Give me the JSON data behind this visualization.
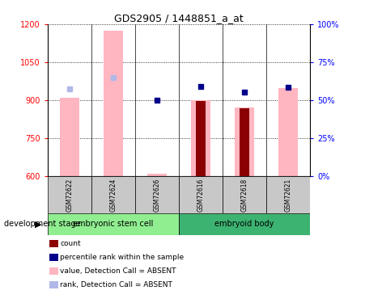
{
  "title": "GDS2905 / 1448851_a_at",
  "samples": [
    "GSM72622",
    "GSM72624",
    "GSM72626",
    "GSM72616",
    "GSM72618",
    "GSM72621"
  ],
  "ylim_left": [
    600,
    1200
  ],
  "ylim_right": [
    0,
    100
  ],
  "yticks_left": [
    600,
    750,
    900,
    1050,
    1200
  ],
  "yticks_right": [
    0,
    25,
    50,
    75,
    100
  ],
  "ytick_labels_right": [
    "0%",
    "25%",
    "50%",
    "75%",
    "100%"
  ],
  "groups": [
    {
      "name": "embryonic stem cell",
      "samples": [
        "GSM72622",
        "GSM72624",
        "GSM72626"
      ],
      "color": "#90EE90"
    },
    {
      "name": "embryoid body",
      "samples": [
        "GSM72616",
        "GSM72618",
        "GSM72621"
      ],
      "color": "#3CB371"
    }
  ],
  "absent_value_bars": {
    "GSM72622": 908,
    "GSM72624": 1175,
    "GSM72626": 607,
    "GSM72616": 898,
    "GSM72618": 870,
    "GSM72621": 948
  },
  "absent_rank_points": {
    "GSM72622": 945,
    "GSM72624": 990,
    "GSM72626": null,
    "GSM72616": null,
    "GSM72618": null,
    "GSM72621": null
  },
  "count_bars": {
    "GSM72622": null,
    "GSM72624": null,
    "GSM72626": null,
    "GSM72616": 897,
    "GSM72618": 868,
    "GSM72621": null
  },
  "percentile_rank_points": {
    "GSM72622": null,
    "GSM72624": null,
    "GSM72626": 900,
    "GSM72616": 953,
    "GSM72618": 932,
    "GSM72621": 952
  },
  "absent_bar_color": "#FFB6C1",
  "absent_rank_color": "#B0B8E8",
  "count_bar_color": "#8B0000",
  "percentile_rank_color": "#00008B",
  "legend_items": [
    {
      "label": "count",
      "color": "#8B0000"
    },
    {
      "label": "percentile rank within the sample",
      "color": "#00008B"
    },
    {
      "label": "value, Detection Call = ABSENT",
      "color": "#FFB6C1"
    },
    {
      "label": "rank, Detection Call = ABSENT",
      "color": "#B0B8E8"
    }
  ],
  "development_stage_label": "development stage"
}
